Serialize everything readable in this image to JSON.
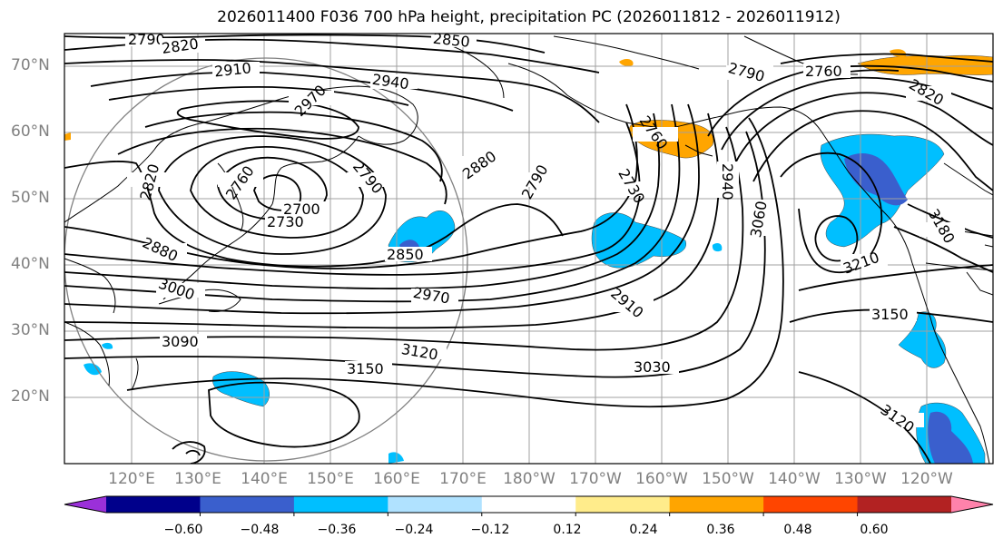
{
  "title": "2026011400 F036 700 hPa height, precipitation PC (2026011812 - 2026011912)",
  "lat_labels": [
    "70°N",
    "60°N",
    "50°N",
    "40°N",
    "30°N",
    "20°N"
  ],
  "lon_labels": [
    "120°E",
    "130°E",
    "140°E",
    "150°E",
    "160°E",
    "170°E",
    "180°W",
    "170°W",
    "160°W",
    "150°W",
    "140°W",
    "130°W",
    "120°W"
  ],
  "contour_labels": [
    "2790",
    "2820",
    "2850",
    "2910",
    "2940",
    "2970",
    "2880",
    "2760",
    "2790",
    "2700",
    "2730",
    "2820",
    "2880",
    "2850",
    "3000",
    "2970",
    "3090",
    "3120",
    "3150",
    "2790",
    "2730",
    "2910",
    "3030",
    "2940",
    "3060",
    "2760",
    "2790",
    "2820",
    "3210",
    "3180",
    "3150",
    "3120",
    "2760"
  ],
  "colorbar": {
    "ticks": [
      "−0.60",
      "−0.48",
      "−0.36",
      "−0.24",
      "−0.12",
      "0.12",
      "0.24",
      "0.36",
      "0.48",
      "0.60"
    ],
    "colors": [
      "#9b30d9",
      "#00008b",
      "#3a5fcd",
      "#00bfff",
      "#b0e2ff",
      "#ffffff",
      "#ffec8b",
      "#ffa500",
      "#ff4500",
      "#b22222",
      "#ff82ab"
    ]
  }
}
